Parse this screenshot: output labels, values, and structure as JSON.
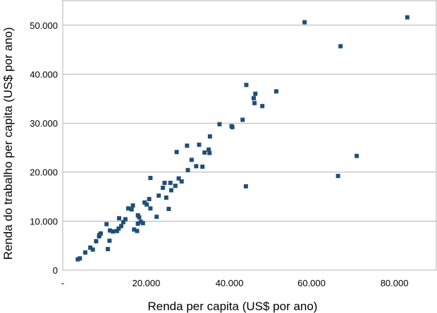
{
  "chart_data": {
    "type": "scatter",
    "xlabel": "Renda per capita (US$ por ano)",
    "ylabel": "Renda do trabalho per capita (US$ por ano)",
    "xlim": [
      0,
      90000
    ],
    "ylim": [
      0,
      55000
    ],
    "x_ticks": [
      0,
      20000,
      40000,
      60000,
      80000
    ],
    "x_tick_labels": [
      "-",
      "20.000",
      "40.000",
      "60.000",
      "80.000"
    ],
    "y_ticks": [
      0,
      10000,
      20000,
      30000,
      40000,
      50000
    ],
    "y_tick_labels": [
      "0",
      "10.000",
      "20.000",
      "30.000",
      "40.000",
      "50.000"
    ],
    "grid": "horizontal",
    "marker_color": "#1f4e79",
    "marker": "square",
    "points": [
      {
        "x": 3600,
        "y": 2200
      },
      {
        "x": 4100,
        "y": 2400
      },
      {
        "x": 5400,
        "y": 3600
      },
      {
        "x": 6600,
        "y": 4600
      },
      {
        "x": 7200,
        "y": 4200
      },
      {
        "x": 8000,
        "y": 5900
      },
      {
        "x": 8700,
        "y": 6900
      },
      {
        "x": 9100,
        "y": 7500
      },
      {
        "x": 8800,
        "y": 7200
      },
      {
        "x": 10500,
        "y": 9400
      },
      {
        "x": 10800,
        "y": 4300
      },
      {
        "x": 11200,
        "y": 6000
      },
      {
        "x": 11300,
        "y": 8100
      },
      {
        "x": 12000,
        "y": 7900
      },
      {
        "x": 13000,
        "y": 8000
      },
      {
        "x": 13400,
        "y": 8500
      },
      {
        "x": 13500,
        "y": 10600
      },
      {
        "x": 14000,
        "y": 9000
      },
      {
        "x": 14500,
        "y": 9800
      },
      {
        "x": 15000,
        "y": 10400
      },
      {
        "x": 15700,
        "y": 12600
      },
      {
        "x": 16500,
        "y": 12400
      },
      {
        "x": 16800,
        "y": 13200
      },
      {
        "x": 17100,
        "y": 8300
      },
      {
        "x": 17800,
        "y": 8000
      },
      {
        "x": 18000,
        "y": 9500
      },
      {
        "x": 18000,
        "y": 11200
      },
      {
        "x": 18300,
        "y": 10800
      },
      {
        "x": 18700,
        "y": 9900
      },
      {
        "x": 19200,
        "y": 9600
      },
      {
        "x": 19600,
        "y": 13800
      },
      {
        "x": 20100,
        "y": 13400
      },
      {
        "x": 20700,
        "y": 14500
      },
      {
        "x": 21000,
        "y": 12600
      },
      {
        "x": 21000,
        "y": 18800
      },
      {
        "x": 22500,
        "y": 10900
      },
      {
        "x": 23000,
        "y": 15200
      },
      {
        "x": 24000,
        "y": 16800
      },
      {
        "x": 24400,
        "y": 17800
      },
      {
        "x": 24800,
        "y": 14800
      },
      {
        "x": 25400,
        "y": 12500
      },
      {
        "x": 25800,
        "y": 17800
      },
      {
        "x": 26000,
        "y": 16300
      },
      {
        "x": 27000,
        "y": 17200
      },
      {
        "x": 27300,
        "y": 24100
      },
      {
        "x": 27800,
        "y": 18700
      },
      {
        "x": 28500,
        "y": 18100
      },
      {
        "x": 29800,
        "y": 25400
      },
      {
        "x": 30000,
        "y": 20400
      },
      {
        "x": 30900,
        "y": 22500
      },
      {
        "x": 32000,
        "y": 21200
      },
      {
        "x": 32700,
        "y": 25600
      },
      {
        "x": 33500,
        "y": 21100
      },
      {
        "x": 34000,
        "y": 24000
      },
      {
        "x": 35000,
        "y": 24600
      },
      {
        "x": 35200,
        "y": 23900
      },
      {
        "x": 35300,
        "y": 27300
      },
      {
        "x": 37600,
        "y": 29800
      },
      {
        "x": 40500,
        "y": 29400
      },
      {
        "x": 40700,
        "y": 29200
      },
      {
        "x": 43200,
        "y": 30700
      },
      {
        "x": 44100,
        "y": 37800
      },
      {
        "x": 44000,
        "y": 17100
      },
      {
        "x": 45900,
        "y": 35100
      },
      {
        "x": 46100,
        "y": 34100
      },
      {
        "x": 46300,
        "y": 36000
      },
      {
        "x": 48000,
        "y": 33500
      },
      {
        "x": 51400,
        "y": 36500
      },
      {
        "x": 58300,
        "y": 50600
      },
      {
        "x": 66400,
        "y": 19200
      },
      {
        "x": 67000,
        "y": 45700
      },
      {
        "x": 70900,
        "y": 23300
      },
      {
        "x": 83100,
        "y": 51600
      }
    ]
  }
}
